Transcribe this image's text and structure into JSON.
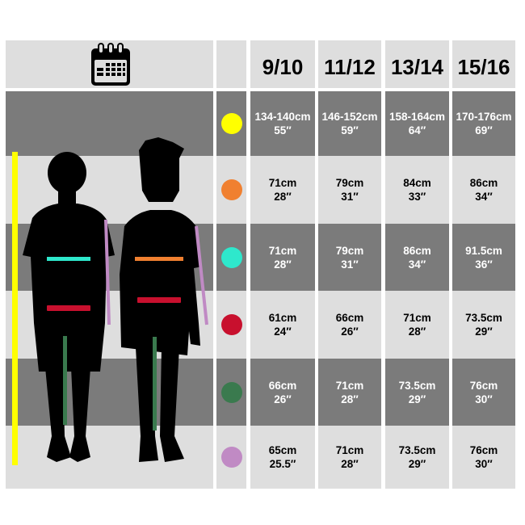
{
  "header": {
    "icon": "calendar-icon",
    "sizes": [
      "9/10",
      "11/12",
      "13/14",
      "15/16"
    ]
  },
  "rows": [
    {
      "measure_color": "#ffff00",
      "values": [
        [
          "134-140cm",
          "55″"
        ],
        [
          "146-152cm",
          "59″"
        ],
        [
          "158-164cm",
          "64″"
        ],
        [
          "170-176cm",
          "69″"
        ]
      ]
    },
    {
      "measure_color": "#f08030",
      "values": [
        [
          "71cm",
          "28″"
        ],
        [
          "79cm",
          "31″"
        ],
        [
          "84cm",
          "33″"
        ],
        [
          "86cm",
          "34″"
        ]
      ]
    },
    {
      "measure_color": "#2ee8cc",
      "values": [
        [
          "71cm",
          "28″"
        ],
        [
          "79cm",
          "31″"
        ],
        [
          "86cm",
          "34″"
        ],
        [
          "91.5cm",
          "36″"
        ]
      ]
    },
    {
      "measure_color": "#c8102e",
      "values": [
        [
          "61cm",
          "24″"
        ],
        [
          "66cm",
          "26″"
        ],
        [
          "71cm",
          "28″"
        ],
        [
          "73.5cm",
          "29″"
        ]
      ]
    },
    {
      "measure_color": "#3a7a4e",
      "values": [
        [
          "66cm",
          "26″"
        ],
        [
          "71cm",
          "28″"
        ],
        [
          "73.5cm",
          "29″"
        ],
        [
          "76cm",
          "30″"
        ]
      ]
    },
    {
      "measure_color": "#c08ac4",
      "values": [
        [
          "65cm",
          "25.5″"
        ],
        [
          "71cm",
          "28″"
        ],
        [
          "73.5cm",
          "29″"
        ],
        [
          "76cm",
          "30″"
        ]
      ]
    }
  ]
}
